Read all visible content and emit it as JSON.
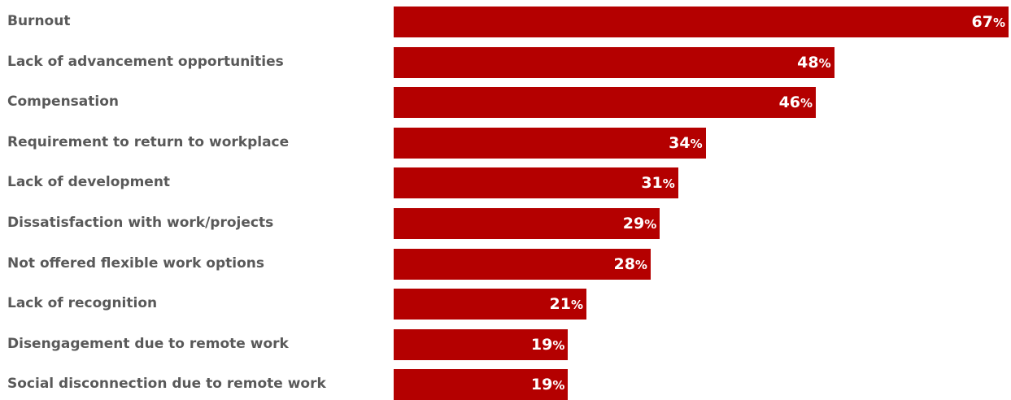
{
  "chart_data": {
    "type": "bar",
    "orientation": "horizontal",
    "categories": [
      "Burnout",
      "Lack of advancement opportunities",
      "Compensation",
      "Requirement to return to workplace",
      "Lack of development",
      "Dissatisfaction with work/projects",
      "Not offered flexible work options",
      "Lack of recognition",
      "Disengagement due to remote work",
      "Social disconnection due to remote work"
    ],
    "values": [
      67,
      48,
      46,
      34,
      31,
      29,
      28,
      21,
      19,
      19
    ],
    "value_suffix": "%",
    "title": "",
    "xlabel": "",
    "ylabel": "",
    "xlim": [
      0,
      67
    ],
    "grid": false,
    "legend": "none",
    "colors": {
      "bar": "#b40000",
      "category_text": "#595959",
      "value_text": "#ffffff"
    }
  }
}
